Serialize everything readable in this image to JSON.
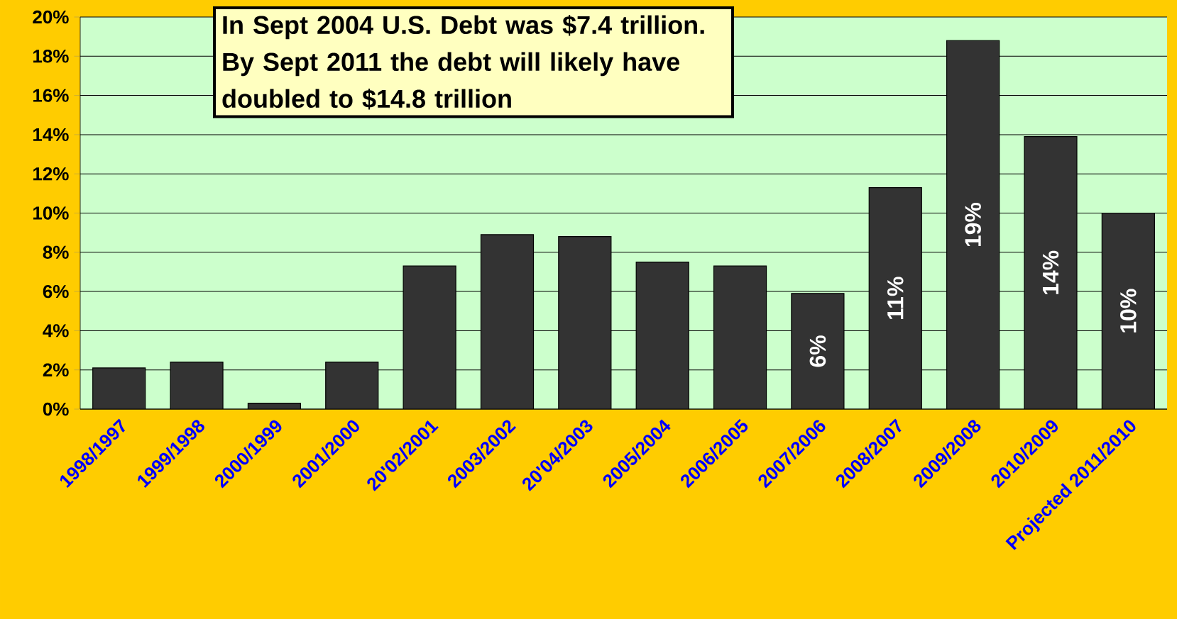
{
  "chart_data": {
    "type": "bar",
    "annotations": [
      "In Sept 2004 U.S. Debt was $7.4 trillion.  By Sept 2011 the debt will likely have doubled to $14.8 trillion"
    ],
    "categories": [
      "1998/1997",
      "1999/1998",
      "2000/1999",
      "2001/2000",
      "20'02/2001",
      "2003/2002",
      "20'04/2003",
      "2005/2004",
      "2006/2005",
      "2007/2006",
      "2008/2007",
      "2009/2008",
      "2010/2009",
      "Projected 2011/2010"
    ],
    "values": [
      2.1,
      2.4,
      0.3,
      2.4,
      7.3,
      8.9,
      8.8,
      7.5,
      7.3,
      5.9,
      11.3,
      18.8,
      13.9,
      10.0
    ],
    "value_labels": [
      null,
      null,
      null,
      null,
      null,
      null,
      null,
      null,
      null,
      "6%",
      "11%",
      "19%",
      "14%",
      "10%"
    ],
    "color": "#333333",
    "ylim": [
      0,
      20
    ],
    "yticks": [
      {
        "value": 0,
        "label": "0%"
      },
      {
        "value": 2,
        "label": "2%"
      },
      {
        "value": 4,
        "label": "4%"
      },
      {
        "value": 6,
        "label": "6%"
      },
      {
        "value": 8,
        "label": "8%"
      },
      {
        "value": 10,
        "label": "10%"
      },
      {
        "value": 12,
        "label": "12%"
      },
      {
        "value": 14,
        "label": "14%"
      },
      {
        "value": 16,
        "label": "16%"
      },
      {
        "value": 18,
        "label": "18%"
      },
      {
        "value": 20,
        "label": "20%"
      }
    ],
    "grid": "y"
  }
}
